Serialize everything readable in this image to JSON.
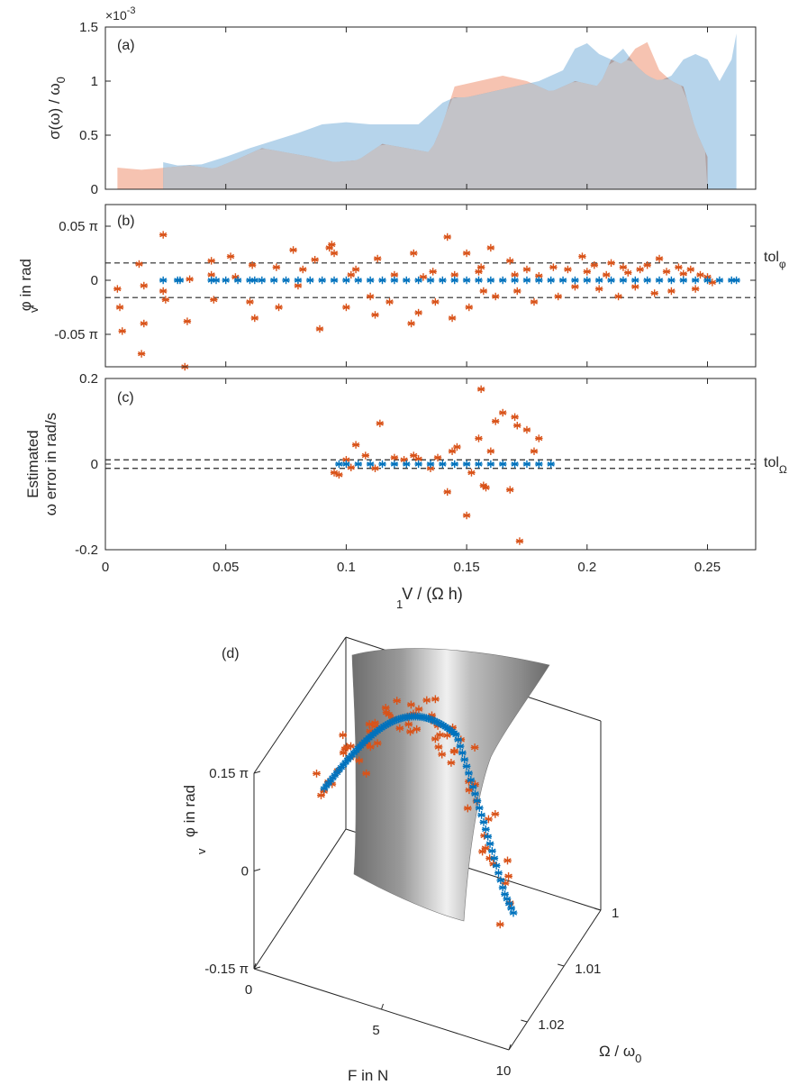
{
  "colors": {
    "orange": "#d95319",
    "blue": "#0072bd",
    "orange_fill": "#f4b9a3",
    "blue_fill": "#a9cde8",
    "overlap_fill": "#c3c3c8",
    "axis": "#262626"
  },
  "chart_data": [
    {
      "panel": "(a)",
      "type": "area",
      "ylabel": "σ(ω) / ω",
      "ylabel_sub": "0",
      "exponent": "×10",
      "exponent_power": "-3",
      "xlim": [
        0,
        0.27
      ],
      "ylim": [
        0,
        1.5
      ],
      "yticks": [
        0,
        0.5,
        1,
        1.5
      ],
      "ytick_labels": [
        "0",
        "0.5",
        "1",
        "1.5"
      ],
      "series": [
        {
          "color": "orange",
          "x": [
            0.005,
            0.015,
            0.025,
            0.035,
            0.045,
            0.055,
            0.065,
            0.075,
            0.085,
            0.095,
            0.105,
            0.115,
            0.125,
            0.135,
            0.14,
            0.145,
            0.155,
            0.165,
            0.175,
            0.185,
            0.195,
            0.205,
            0.21,
            0.215,
            0.22,
            0.225,
            0.23,
            0.235,
            0.24,
            0.245,
            0.25
          ],
          "y": [
            0.2,
            0.18,
            0.2,
            0.22,
            0.19,
            0.28,
            0.38,
            0.34,
            0.3,
            0.25,
            0.27,
            0.42,
            0.38,
            0.34,
            0.6,
            0.95,
            1.0,
            1.05,
            1.0,
            0.9,
            1.0,
            0.95,
            1.2,
            1.15,
            1.3,
            1.36,
            1.1,
            1.0,
            0.95,
            0.55,
            0.3
          ]
        },
        {
          "color": "blue",
          "x": [
            0.024,
            0.03,
            0.04,
            0.05,
            0.06,
            0.07,
            0.08,
            0.09,
            0.1,
            0.11,
            0.12,
            0.13,
            0.135,
            0.14,
            0.145,
            0.15,
            0.16,
            0.17,
            0.18,
            0.19,
            0.195,
            0.2,
            0.205,
            0.21,
            0.215,
            0.22,
            0.225,
            0.23,
            0.235,
            0.24,
            0.245,
            0.25,
            0.255,
            0.26,
            0.262
          ],
          "y": [
            0.25,
            0.22,
            0.23,
            0.3,
            0.38,
            0.45,
            0.52,
            0.6,
            0.62,
            0.6,
            0.6,
            0.6,
            0.7,
            0.8,
            0.85,
            0.85,
            0.9,
            0.95,
            1.0,
            1.1,
            1.3,
            1.35,
            1.25,
            1.2,
            1.3,
            1.15,
            1.05,
            1.0,
            1.05,
            1.2,
            1.25,
            1.2,
            1.0,
            1.2,
            1.44
          ]
        }
      ]
    },
    {
      "panel": "(b)",
      "type": "scatter",
      "ylabel": "φ in rad",
      "ylabel_sub": "v",
      "xlim": [
        0,
        0.27
      ],
      "ylim": [
        -0.08,
        0.07
      ],
      "yticks": [
        -0.05,
        0,
        0.05
      ],
      "ytick_labels": [
        "-0.05 π",
        "0",
        "0.05 π"
      ],
      "hlines": [
        0.016,
        -0.016
      ],
      "hline_label": "tol",
      "hline_label_sub": "φ",
      "series": [
        {
          "color": "orange",
          "x": [
            0.005,
            0.006,
            0.007,
            0.014,
            0.015,
            0.016,
            0.016,
            0.024,
            0.025,
            0.024,
            0.033,
            0.034,
            0.035,
            0.044,
            0.045,
            0.044,
            0.052,
            0.054,
            0.06,
            0.062,
            0.061,
            0.071,
            0.072,
            0.078,
            0.08,
            0.082,
            0.087,
            0.089,
            0.093,
            0.095,
            0.094,
            0.1,
            0.102,
            0.104,
            0.11,
            0.112,
            0.113,
            0.118,
            0.12,
            0.127,
            0.128,
            0.13,
            0.132,
            0.136,
            0.137,
            0.142,
            0.144,
            0.145,
            0.15,
            0.151,
            0.155,
            0.156,
            0.157,
            0.16,
            0.162,
            0.168,
            0.17,
            0.171,
            0.175,
            0.178,
            0.18,
            0.186,
            0.188,
            0.192,
            0.195,
            0.198,
            0.2,
            0.203,
            0.205,
            0.208,
            0.21,
            0.213,
            0.215,
            0.217,
            0.22,
            0.222,
            0.225,
            0.228,
            0.23,
            0.233,
            0.235,
            0.238,
            0.24,
            0.243,
            0.245,
            0.247,
            0.25,
            0.252
          ],
          "y": [
            -0.008,
            -0.025,
            -0.047,
            0.015,
            -0.068,
            -0.005,
            -0.04,
            0.042,
            -0.018,
            -0.01,
            -0.08,
            -0.038,
            0.001,
            0.018,
            -0.018,
            0.005,
            0.022,
            0.003,
            -0.02,
            -0.035,
            0.014,
            0.012,
            -0.025,
            0.028,
            -0.005,
            0.01,
            0.019,
            -0.045,
            0.03,
            0.025,
            0.033,
            -0.025,
            0.005,
            0.01,
            -0.015,
            -0.032,
            0.02,
            -0.02,
            0.005,
            -0.04,
            0.025,
            -0.03,
            0.003,
            0.008,
            -0.02,
            0.04,
            -0.035,
            0.005,
            0.025,
            -0.025,
            0.008,
            0.012,
            -0.01,
            0.03,
            -0.015,
            0.018,
            0.005,
            -0.01,
            0.01,
            -0.02,
            0.004,
            0.012,
            -0.015,
            0.01,
            -0.006,
            0.022,
            0.008,
            0.014,
            -0.008,
            0.005,
            0.016,
            -0.015,
            0.012,
            0.007,
            -0.006,
            0.01,
            0.014,
            -0.012,
            0.02,
            0.008,
            -0.01,
            0.012,
            0.006,
            0.01,
            -0.008,
            0.005,
            0.003,
            -0.002
          ]
        },
        {
          "color": "blue",
          "x": [
            0.024,
            0.03,
            0.031,
            0.044,
            0.046,
            0.05,
            0.055,
            0.06,
            0.062,
            0.065,
            0.07,
            0.075,
            0.08,
            0.085,
            0.09,
            0.095,
            0.1,
            0.105,
            0.11,
            0.115,
            0.12,
            0.125,
            0.13,
            0.135,
            0.14,
            0.145,
            0.15,
            0.155,
            0.16,
            0.165,
            0.17,
            0.175,
            0.18,
            0.185,
            0.19,
            0.195,
            0.2,
            0.205,
            0.21,
            0.215,
            0.22,
            0.225,
            0.23,
            0.235,
            0.24,
            0.245,
            0.25,
            0.255,
            0.26,
            0.262
          ],
          "y": [
            0,
            0,
            0,
            0,
            0,
            0,
            0,
            0,
            0,
            0,
            0,
            0,
            0,
            0,
            0,
            0,
            0,
            0,
            0,
            0,
            0,
            0,
            0,
            0,
            0,
            0,
            0,
            0,
            0,
            0,
            0,
            0,
            0,
            0,
            0,
            0,
            0,
            0,
            0,
            0,
            0,
            0,
            0,
            0,
            0,
            0,
            0,
            0,
            0,
            0
          ]
        }
      ]
    },
    {
      "panel": "(c)",
      "type": "scatter",
      "ylabel_line1": "Estimated",
      "ylabel_line2": "ω error in rad/s",
      "xlabel": "V  / (Ω h)",
      "xlabel_sub": "1",
      "xlim": [
        0,
        0.27
      ],
      "ylim": [
        -0.2,
        0.2
      ],
      "xticks": [
        0,
        0.05,
        0.1,
        0.15,
        0.2,
        0.25
      ],
      "xtick_labels": [
        "0",
        "0.05",
        "0.1",
        "0.15",
        "0.2",
        "0.25"
      ],
      "yticks": [
        -0.2,
        0,
        0.2
      ],
      "ytick_labels": [
        "-0.2",
        "0",
        "0.2"
      ],
      "hlines": [
        0.01,
        -0.01
      ],
      "hline_label": "tol",
      "hline_label_sub": "Ω",
      "series": [
        {
          "color": "orange",
          "x": [
            0.095,
            0.097,
            0.1,
            0.102,
            0.104,
            0.108,
            0.112,
            0.114,
            0.12,
            0.124,
            0.128,
            0.13,
            0.135,
            0.138,
            0.142,
            0.144,
            0.146,
            0.15,
            0.152,
            0.155,
            0.156,
            0.157,
            0.158,
            0.16,
            0.162,
            0.165,
            0.168,
            0.17,
            0.171,
            0.172,
            0.175,
            0.178,
            0.18
          ],
          "y": [
            -0.02,
            -0.025,
            0.01,
            -0.008,
            0.045,
            0.02,
            -0.01,
            0.095,
            0.015,
            0.01,
            0.02,
            0.012,
            -0.01,
            0.015,
            -0.065,
            0.03,
            0.04,
            -0.12,
            -0.02,
            0.06,
            0.175,
            -0.05,
            -0.055,
            0.03,
            0.1,
            0.12,
            -0.06,
            0.11,
            0.09,
            -0.18,
            0.08,
            0.03,
            0.06
          ]
        },
        {
          "color": "blue",
          "x": [
            0.097,
            0.1,
            0.105,
            0.11,
            0.115,
            0.12,
            0.125,
            0.13,
            0.135,
            0.14,
            0.145,
            0.15,
            0.155,
            0.16,
            0.165,
            0.17,
            0.175,
            0.18,
            0.185
          ],
          "y": [
            0,
            0,
            0,
            0,
            0,
            0,
            0,
            0,
            0,
            0,
            0,
            0,
            0,
            0,
            0,
            0,
            0,
            0,
            0
          ]
        }
      ]
    },
    {
      "panel": "(d)",
      "type": "scatter3d",
      "zlabel": "φ  in rad",
      "zlabel_sub": "v",
      "xlabel": "F in N",
      "ylabel": "Ω / ω",
      "ylabel_sub": "0",
      "zticks": [
        -0.15,
        0,
        0.15
      ],
      "ztick_labels": [
        "-0.15 π",
        "0",
        "0.15 π"
      ],
      "xticks": [
        0,
        5,
        10
      ],
      "xtick_labels": [
        "0",
        "5",
        "10"
      ],
      "yticks": [
        1,
        1.01,
        1.02
      ],
      "ytick_labels": [
        "1",
        "1.01",
        "1.02"
      ]
    }
  ]
}
